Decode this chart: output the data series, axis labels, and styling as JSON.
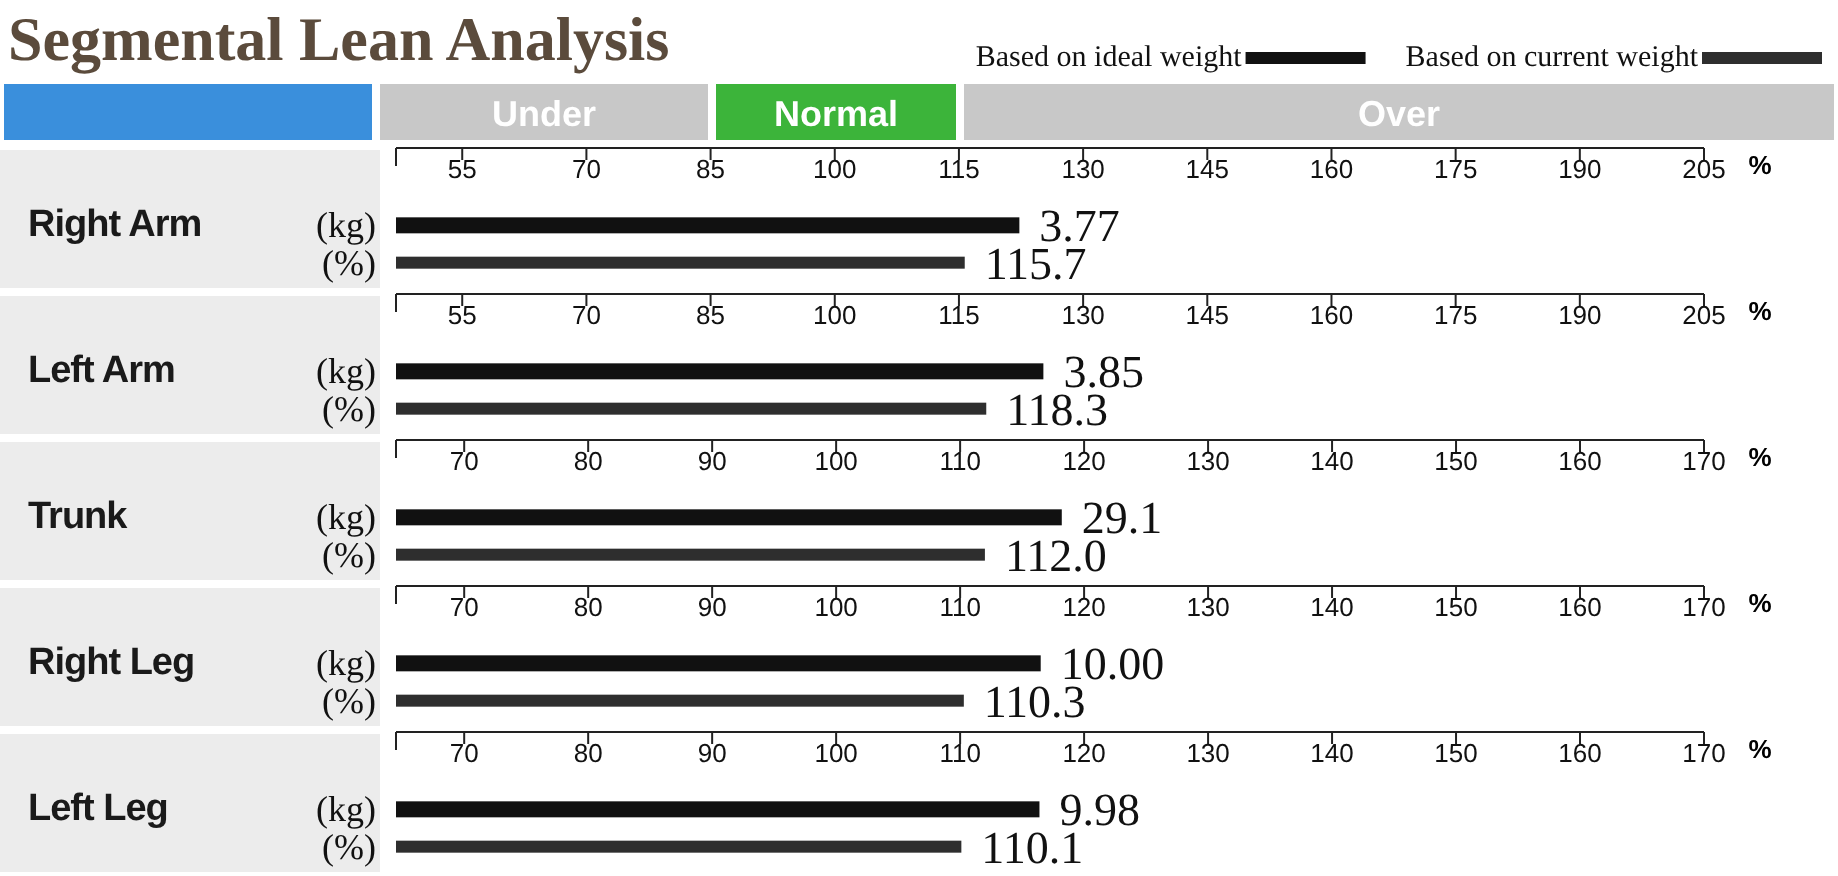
{
  "chart_data": [
    {
      "type": "other",
      "title": "Segmental Lean Analysis",
      "annotations": [
        "Under",
        "Normal",
        "Over"
      ]
    },
    {
      "type": "bar",
      "orientation": "horizontal",
      "ylabel": "Right Arm",
      "xlabel": "%",
      "categories": [
        "(kg)",
        "(%)"
      ],
      "legend": "top right",
      "series": [
        {
          "name": "Based on ideal weight",
          "color": "#111111",
          "values": [
            122.3,
            null
          ]
        },
        {
          "name": "Based on current weight",
          "color": "#2e2e2e",
          "values": [
            null,
            115.7
          ],
          "value_labels": [
            null,
            "115.7"
          ]
        }
      ],
      "xlim": [
        47,
        205
      ],
      "xticks": [
        55,
        70,
        85,
        100,
        115,
        130,
        145,
        160,
        175,
        190,
        205
      ],
      "annotations": [
        {
          "text": "3.77",
          "x": 122.3,
          "y": "(kg)"
        }
      ]
    },
    {
      "type": "bar",
      "orientation": "horizontal",
      "ylabel": "Left Arm",
      "xlabel": "%",
      "categories": [
        "(kg)",
        "(%)"
      ],
      "series": [
        {
          "color": "#111111",
          "values": [
            125.2,
            null
          ]
        },
        {
          "color": "#2e2e2e",
          "values": [
            null,
            118.3
          ],
          "value_labels": [
            null,
            "118.3"
          ]
        }
      ],
      "xlim": [
        47,
        205
      ],
      "xticks": [
        55,
        70,
        85,
        100,
        115,
        130,
        145,
        160,
        175,
        190,
        205
      ],
      "annotations": [
        {
          "text": "3.85",
          "x": 125.2,
          "y": "(kg)"
        }
      ]
    },
    {
      "type": "bar",
      "orientation": "horizontal",
      "ylabel": "Trunk",
      "xlabel": "%",
      "categories": [
        "(kg)",
        "(%)"
      ],
      "series": [
        {
          "color": "#111111",
          "values": [
            118.2,
            null
          ]
        },
        {
          "color": "#2e2e2e",
          "values": [
            null,
            112.0
          ],
          "value_labels": [
            null,
            "112.0"
          ]
        }
      ],
      "xlim": [
        64.5,
        170
      ],
      "xticks": [
        70,
        80,
        90,
        100,
        110,
        120,
        130,
        140,
        150,
        160,
        170
      ],
      "annotations": [
        {
          "text": "29.1",
          "x": 118.2,
          "y": "(kg)"
        }
      ]
    },
    {
      "type": "bar",
      "orientation": "horizontal",
      "ylabel": "Right Leg",
      "xlabel": "%",
      "categories": [
        "(kg)",
        "(%)"
      ],
      "series": [
        {
          "color": "#111111",
          "values": [
            116.5,
            null
          ]
        },
        {
          "color": "#2e2e2e",
          "values": [
            null,
            110.3
          ],
          "value_labels": [
            null,
            "110.3"
          ]
        }
      ],
      "xlim": [
        64.5,
        170
      ],
      "xticks": [
        70,
        80,
        90,
        100,
        110,
        120,
        130,
        140,
        150,
        160,
        170
      ],
      "annotations": [
        {
          "text": "10.00",
          "x": 116.5,
          "y": "(kg)"
        }
      ]
    },
    {
      "type": "bar",
      "orientation": "horizontal",
      "ylabel": "Left Leg",
      "xlabel": "%",
      "categories": [
        "(kg)",
        "(%)"
      ],
      "series": [
        {
          "color": "#111111",
          "values": [
            116.4,
            null
          ]
        },
        {
          "color": "#2e2e2e",
          "values": [
            null,
            110.1
          ],
          "value_labels": [
            null,
            "110.1"
          ]
        }
      ],
      "xlim": [
        64.5,
        170
      ],
      "xticks": [
        70,
        80,
        90,
        100,
        110,
        120,
        130,
        140,
        150,
        160,
        170
      ],
      "annotations": [
        {
          "text": "9.98",
          "x": 116.4,
          "y": "(kg)"
        }
      ]
    }
  ]
}
